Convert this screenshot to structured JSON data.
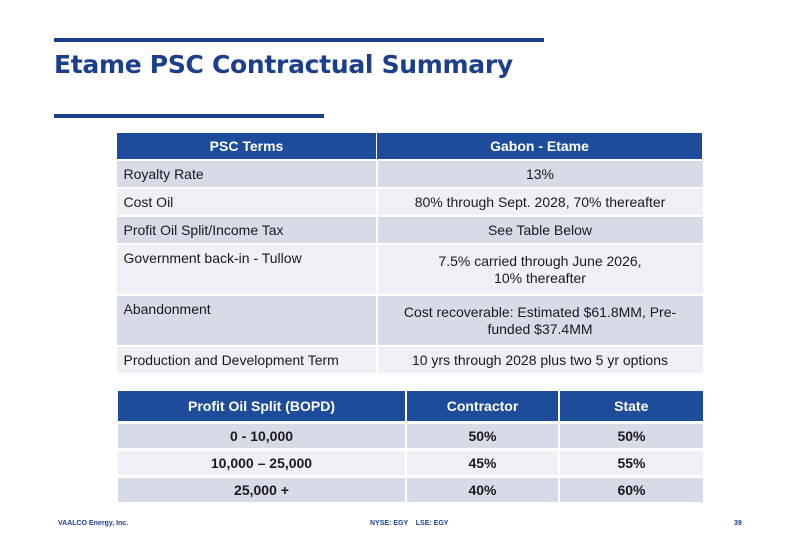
{
  "slide": {
    "title": "Etame PSC Contractual Summary",
    "page_number": "39"
  },
  "psc_table": {
    "headers": [
      "PSC Terms",
      "Gabon - Etame"
    ],
    "rows": [
      {
        "term": "Royalty Rate",
        "value": "13%"
      },
      {
        "term": "Cost Oil",
        "value": "80% through Sept. 2028, 70% thereafter"
      },
      {
        "term": "Profit Oil Split/Income Tax",
        "value": "See Table Below"
      },
      {
        "term": "Government back-in - Tullow",
        "value": "7.5% carried through June 2026,",
        "value2": "10% thereafter"
      },
      {
        "term": "Abandonment",
        "value": "Cost recoverable: Estimated $61.8MM, Pre-",
        "value2": "funded $37.4MM"
      },
      {
        "term": "Production and Development Term",
        "value": "10 yrs through 2028 plus two 5 yr options"
      }
    ]
  },
  "split_table": {
    "headers": [
      "Profit Oil Split (BOPD)",
      "Contractor",
      "State"
    ],
    "rows": [
      {
        "range": "0  - 10,000",
        "contractor": "50%",
        "state": "50%"
      },
      {
        "range": "10,000 – 25,000",
        "contractor": "45%",
        "state": "55%"
      },
      {
        "range": "25,000 +",
        "contractor": "40%",
        "state": "60%"
      }
    ]
  },
  "footer": {
    "company": "VAALCO Energy, Inc.",
    "tickers": "NYSE: EGY    LSE: EGY"
  }
}
